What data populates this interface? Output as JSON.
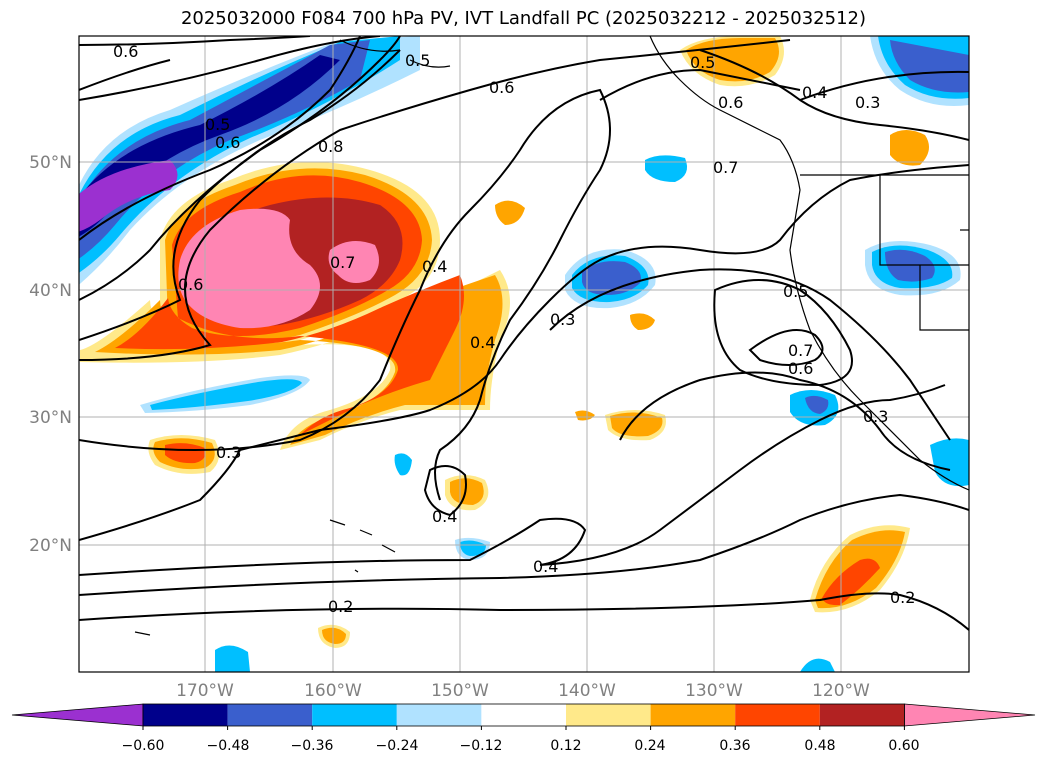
{
  "title": "2025032000 F084 700 hPa PV, IVT Landfall PC (2025032212 - 2025032512)",
  "map": {
    "lat_labels": [
      "50°N",
      "40°N",
      "30°N",
      "20°N"
    ],
    "lon_labels": [
      "170°W",
      "160°W",
      "150°W",
      "140°W",
      "130°W",
      "120°W"
    ],
    "contour_labels": [
      "0.6",
      "0.5",
      "0.6",
      "0.7",
      "0.6",
      "0.8",
      "0.5",
      "0.6",
      "0.4",
      "0.3",
      "0.5",
      "0.6",
      "0.7",
      "0.4",
      "0.3",
      "0.4",
      "0.5",
      "0.7",
      "0.6",
      "0.3",
      "0.3",
      "0.4",
      "0.4",
      "0.2",
      "0.2"
    ]
  },
  "colorbar": {
    "ticks": [
      "−0.60",
      "−0.48",
      "−0.36",
      "−0.24",
      "−0.12",
      "0.12",
      "0.24",
      "0.36",
      "0.48",
      "0.60"
    ],
    "colors": [
      "#9b30d0",
      "#00008b",
      "#3a5fcd",
      "#00bfff",
      "#b0e2ff",
      "#ffffff",
      "#ffe98a",
      "#ffa500",
      "#ff4500",
      "#b22222",
      "#ff85b3"
    ]
  }
}
